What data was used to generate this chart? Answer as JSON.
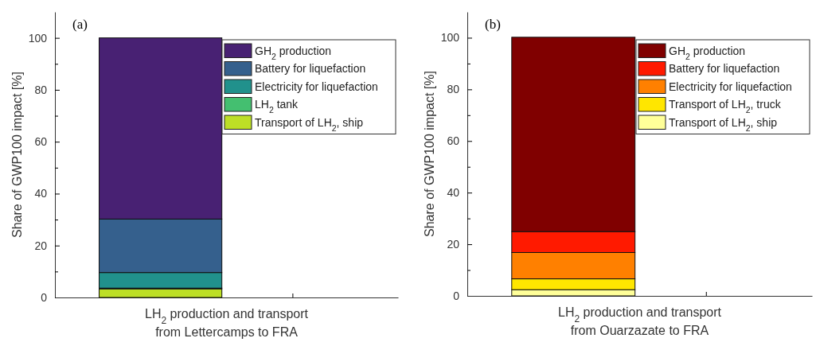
{
  "chart_data": [
    {
      "type": "bar",
      "title": "(a)",
      "xlabel": "LH$_{2}$ production and transport\nfrom Lettercamps to FRA",
      "ylabel": "Share of GWP100 impact [%]",
      "categories": [
        null,
        null
      ],
      "stacked": true,
      "legend": "top right",
      "ylim": [
        0,
        110
      ],
      "yticks": [
        0,
        {
          "value": 10,
          "label": null
        },
        20,
        {
          "value": 30,
          "label": null
        },
        40,
        {
          "value": 50,
          "label": null
        },
        60,
        {
          "value": 70,
          "label": null
        },
        80,
        {
          "value": 90,
          "label": null
        },
        100
      ],
      "series": [
        {
          "name": "Transport of LH$_{2}$, ship",
          "color": "#bddf26",
          "values": [
            3.3,
            null
          ]
        },
        {
          "name": "LH$_{2}$ tank",
          "color": "#44bf70",
          "values": [
            0.3,
            null
          ]
        },
        {
          "name": "Electricity for liquefaction",
          "color": "#21918c",
          "values": [
            6.0,
            null
          ]
        },
        {
          "name": "Battery for liquefaction",
          "color": "#35608d",
          "values": [
            20.6,
            null
          ]
        },
        {
          "name": "GH$_{2}$ production",
          "color": "#482173",
          "values": [
            69.8,
            null
          ]
        }
      ]
    },
    {
      "type": "bar",
      "title": "(b)",
      "xlabel": "LH$_{2}$ production and transport\nfrom Ouarzazate to FRA",
      "ylabel": "Share of GWP100 impact [%]",
      "categories": [
        null,
        null
      ],
      "stacked": true,
      "legend": "top right",
      "ylim": [
        0,
        110
      ],
      "yticks": [
        0,
        {
          "value": 10,
          "label": null
        },
        20,
        {
          "value": 30,
          "label": null
        },
        40,
        {
          "value": 50,
          "label": null
        },
        60,
        {
          "value": 70,
          "label": null
        },
        80,
        {
          "value": 90,
          "label": null
        },
        100
      ],
      "series": [
        {
          "name": "Transport of LH$_{2}$, ship",
          "color": "#ffff99",
          "values": [
            2.4,
            null
          ]
        },
        {
          "name": "Transport of LH$_{2}$, truck",
          "color": "#ffe600",
          "values": [
            4.2,
            null
          ]
        },
        {
          "name": "Electricity for liquefaction",
          "color": "#ff8000",
          "values": [
            10.2,
            null
          ]
        },
        {
          "name": "Battery for liquefaction",
          "color": "#ff1a00",
          "values": [
            8.1,
            null
          ]
        },
        {
          "name": "GH$_{2}$ production",
          "color": "#800000",
          "values": [
            75.3,
            null
          ]
        }
      ]
    }
  ]
}
